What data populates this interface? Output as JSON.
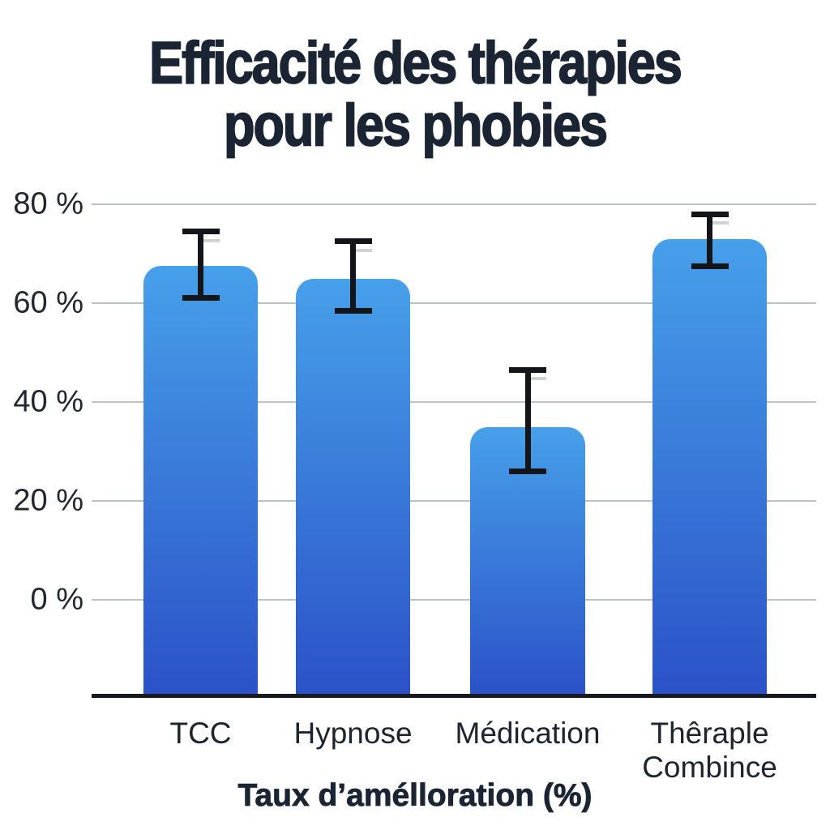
{
  "chart_data": {
    "type": "bar",
    "title": "Efficacité des thérapies pour les phobies",
    "title_lines": [
      "Efficacité des thérapies",
      "pour les phobies"
    ],
    "xlabel": "Taux d’amélloration (%)",
    "ylabel": "",
    "categories": [
      "TCC",
      "Hypnose",
      "Médication",
      "Thêraple Combince"
    ],
    "category_label_lines": [
      [
        "TCC"
      ],
      [
        "Hypnose"
      ],
      [
        "Médication"
      ],
      [
        "Thêraple",
        "Combince"
      ]
    ],
    "values": [
      67.5,
      65,
      35,
      73
    ],
    "error_bars": [
      {
        "low": 61,
        "high": 74.5
      },
      {
        "low": 58.5,
        "high": 72.5
      },
      {
        "low": 26,
        "high": 46.5
      },
      {
        "low": 67.5,
        "high": 78
      }
    ],
    "y_axis": {
      "tick_labels": [
        "80 %",
        "60 %",
        "40 %",
        "20 %",
        "0 %"
      ],
      "tick_values": [
        80,
        60,
        40,
        20,
        0
      ],
      "ylim": [
        -19.5,
        85
      ]
    },
    "grid": true,
    "legend": "none",
    "colors": {
      "bar_gradient_top": "#47A0EA",
      "bar_gradient_bottom": "#2B51C7",
      "gridline": "#C0C3C6",
      "axis_line": "#16191F",
      "error_bar": "#131519",
      "error_ghost_dash": "#D2D2D2",
      "title_text": "#1B2433",
      "label_text": "#1E242E"
    }
  }
}
